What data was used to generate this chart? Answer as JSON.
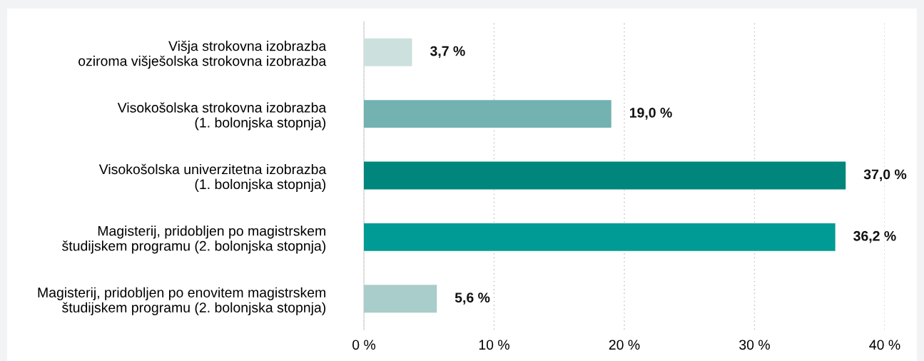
{
  "chart_data": {
    "type": "bar",
    "orientation": "horizontal",
    "categories": [
      "Višja strokovna izobrazba\noziroma višješolska strokovna izobrazba",
      "Visokošolska strokovna izobrazba\n(1. bolonjska stopnja)",
      "Visokošolska univerzitetna izobrazba\n(1. bolonjska stopnja)",
      "Magisterij, pridobljen po magistrskem\nštudijskem programu (2. bolonjska stopnja)",
      "Magisterij, pridobljen po enovitem magistrskem\nštudijskem programu (2. bolonjska stopnja)"
    ],
    "values": [
      3.7,
      19.0,
      37.0,
      36.2,
      5.6
    ],
    "colors": [
      "#cce1de",
      "#72b2b0",
      "#00867c",
      "#009b95",
      "#a8cdca"
    ],
    "value_labels": [
      "3,7 %",
      "19,0 %",
      "37,0 %",
      "36,2 %",
      "5,6 %"
    ],
    "xlim": [
      0,
      40
    ],
    "xticks": [
      {
        "value": 0,
        "label": "0 %"
      },
      {
        "value": 10,
        "label": "10 %"
      },
      {
        "value": 20,
        "label": "20 %"
      },
      {
        "value": 30,
        "label": "30 %"
      },
      {
        "value": 40,
        "label": "40 %"
      }
    ],
    "grid": "x"
  }
}
